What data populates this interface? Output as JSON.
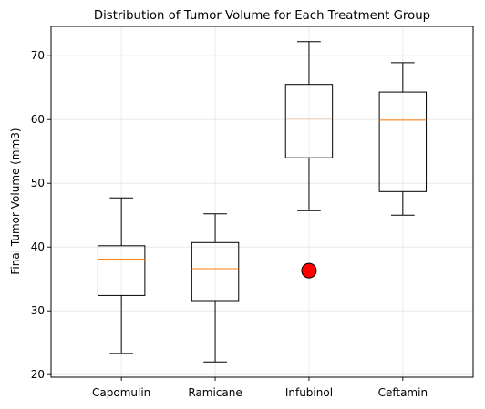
{
  "chart_data": {
    "type": "box",
    "title": "Distribution of Tumor Volume for Each Treatment Group",
    "xlabel": "",
    "ylabel": "Final Tumor Volume (mm3)",
    "ylim": [
      19.6,
      74.6
    ],
    "yticks": [
      20,
      30,
      40,
      50,
      60,
      70
    ],
    "grid": true,
    "categories": [
      "Capomulin",
      "Ramicane",
      "Infubinol",
      "Ceftamin"
    ],
    "boxes": [
      {
        "whisker_low": 23.3,
        "q1": 32.4,
        "median": 38.1,
        "q3": 40.2,
        "whisker_high": 47.7,
        "outliers": []
      },
      {
        "whisker_low": 22.0,
        "q1": 31.6,
        "median": 36.6,
        "q3": 40.7,
        "whisker_high": 45.2,
        "outliers": []
      },
      {
        "whisker_low": 45.7,
        "q1": 54.0,
        "median": 60.2,
        "q3": 65.5,
        "whisker_high": 72.2,
        "outliers": [
          36.3
        ]
      },
      {
        "whisker_low": 45.0,
        "q1": 48.7,
        "median": 59.9,
        "q3": 64.3,
        "whisker_high": 68.9,
        "outliers": []
      }
    ],
    "colors": {
      "box": "#000000",
      "median": "#ff7f0e",
      "outlier_fill": "#ff0000",
      "outlier_edge": "#000000",
      "grid": "#e6e6e6"
    }
  }
}
